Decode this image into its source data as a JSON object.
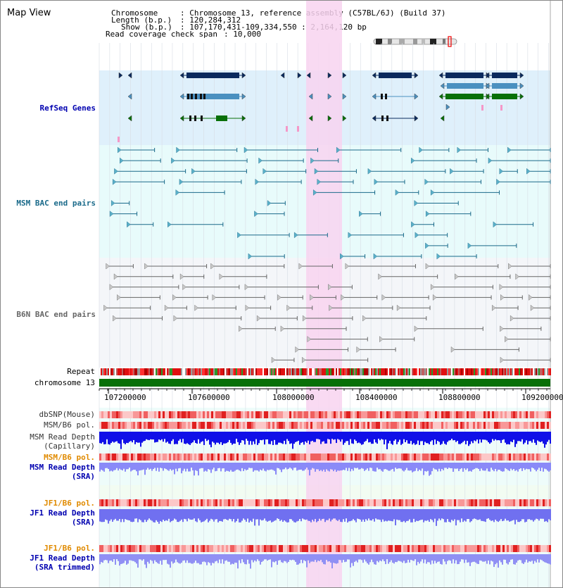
{
  "title": "Map View",
  "info": {
    "chromosome_key": "Chromosome",
    "chromosome_val": ": Chromosome 13, reference assembly (C57BL/6J) (Build 37)",
    "length_key": "Length (b.p.)",
    "length_val": ": 120,284,312",
    "show_key": "Show (b.p.)",
    "show_val": ": 107,170,431-109,334,550 : 2,164,120 bp",
    "coverage_key": "Read coverage check span",
    "coverage_val": ": 10,000"
  },
  "tracks": {
    "refseq": "RefSeq Genes",
    "msm_bac": "MSM BAC end pairs",
    "b6n_bac": "B6N BAC end pairs",
    "repeat": "Repeat",
    "chromosome": "chromosome 13",
    "dbsnp": "dbSNP(Mouse)",
    "msm_b6_pol": "MSM/B6 pol.",
    "msm_depth_cap_1": "MSM Read Depth",
    "msm_depth_cap_2": "(Capillary)",
    "msm_b6_pol_2": "MSM/B6 pol.",
    "msm_depth_sra_1": "MSM Read Depth",
    "msm_depth_sra_2": "(SRA)",
    "jf1_b6_pol": "JF1/B6 pol.",
    "jf1_depth_sra_1": "JF1 Read Depth",
    "jf1_depth_sra_2": "(SRA)",
    "jf1_b6_pol_2": "JF1/B6 pol.",
    "jf1_depth_trim_1": "JF1 Read Depth",
    "jf1_depth_trim_2": "(SRA trimmed)"
  },
  "axis": {
    "ticks": [
      "107200000",
      "107600000",
      "108000000",
      "108400000",
      "108800000",
      "109200000"
    ]
  },
  "colors": {
    "refseq_bg": "#dff0fb",
    "msm_bg": "#e8fbfb",
    "b6n_bg": "#f4f6f9",
    "highlight": "#f8d4f0",
    "dark_gene": "#0a2a5e",
    "light_gene": "#4a90c0",
    "green_gene": "#087008",
    "msm_pair": "#1a6a8a",
    "b6n_pair": "#666666",
    "chromosome_bar": "#087008",
    "label_blue": "#0000b0",
    "label_orange": "#e08a00",
    "label_dark": "#333333"
  }
}
